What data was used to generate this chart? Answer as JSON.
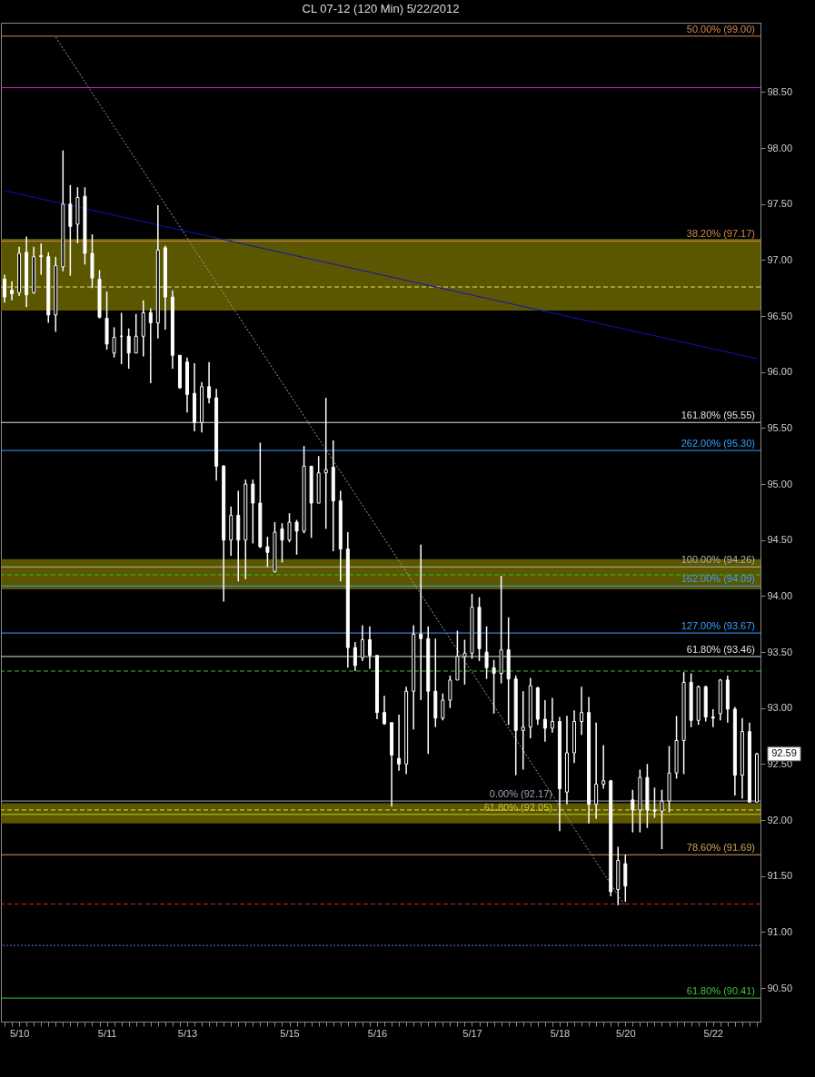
{
  "chart_data": {
    "type": "candlestick",
    "title": "CL 07-12 (120 Min)  5/22/2012",
    "color": "#ffffff",
    "categories": [
      null,
      null,
      "5/10",
      null,
      null,
      null,
      null,
      null,
      null,
      null,
      null,
      null,
      null,
      null,
      "5/11",
      null,
      null,
      null,
      null,
      null,
      null,
      null,
      null,
      null,
      null,
      "5/13",
      null,
      null,
      null,
      null,
      null,
      null,
      null,
      null,
      null,
      null,
      null,
      null,
      null,
      "5/15",
      null,
      null,
      null,
      null,
      null,
      null,
      null,
      null,
      null,
      null,
      null,
      "5/16",
      null,
      null,
      null,
      null,
      null,
      null,
      null,
      null,
      null,
      null,
      null,
      null,
      "5/17",
      null,
      null,
      null,
      null,
      null,
      null,
      null,
      null,
      null,
      null,
      null,
      "5/18",
      null,
      null,
      null,
      null,
      null,
      null,
      null,
      null,
      "5/20",
      null,
      null,
      null,
      null,
      null,
      null,
      null,
      null,
      null,
      null,
      null,
      "5/22",
      null,
      null,
      null,
      null,
      null,
      null
    ],
    "ohlc": [
      [
        96.83,
        96.87,
        96.62,
        96.67
      ],
      [
        96.73,
        96.81,
        96.64,
        96.7
      ],
      [
        96.71,
        97.12,
        96.68,
        97.06
      ],
      [
        97.07,
        97.21,
        96.58,
        96.69
      ],
      [
        96.71,
        97.12,
        96.7,
        97.03
      ],
      [
        97.04,
        97.15,
        96.87,
        97.03
      ],
      [
        97.03,
        97.07,
        96.44,
        96.51
      ],
      [
        96.51,
        97.03,
        96.36,
        96.95
      ],
      [
        96.94,
        97.98,
        96.9,
        97.5
      ],
      [
        97.5,
        97.67,
        96.86,
        97.3
      ],
      [
        97.32,
        97.65,
        97.15,
        97.56
      ],
      [
        97.57,
        97.65,
        96.96,
        97.06
      ],
      [
        97.06,
        97.23,
        96.75,
        96.84
      ],
      [
        96.83,
        96.91,
        96.48,
        96.49
      ],
      [
        96.48,
        96.72,
        96.2,
        96.25
      ],
      [
        96.17,
        96.4,
        96.13,
        96.31
      ],
      [
        96.32,
        96.53,
        96.07,
        96.32
      ],
      [
        96.32,
        96.39,
        96.03,
        96.17
      ],
      [
        96.17,
        96.52,
        96.17,
        96.32
      ],
      [
        96.32,
        96.64,
        96.14,
        96.53
      ],
      [
        96.53,
        96.57,
        95.9,
        96.44
      ],
      [
        96.44,
        97.49,
        96.3,
        97.09
      ],
      [
        97.11,
        97.13,
        96.38,
        96.67
      ],
      [
        96.67,
        96.73,
        96.03,
        96.15
      ],
      [
        96.15,
        96.15,
        95.85,
        95.86
      ],
      [
        96.09,
        96.13,
        95.64,
        95.8
      ],
      [
        95.81,
        96.08,
        95.47,
        95.55
      ],
      [
        95.55,
        95.91,
        95.46,
        95.87
      ],
      [
        95.87,
        96.09,
        95.72,
        95.77
      ],
      [
        95.77,
        95.85,
        95.03,
        95.16
      ],
      [
        95.16,
        95.17,
        93.95,
        94.5
      ],
      [
        94.5,
        94.8,
        94.36,
        94.72
      ],
      [
        94.72,
        94.94,
        94.13,
        94.5
      ],
      [
        94.5,
        95.04,
        94.15,
        95.0
      ],
      [
        95.0,
        95.04,
        94.47,
        94.83
      ],
      [
        94.83,
        95.37,
        94.43,
        94.44
      ],
      [
        94.44,
        94.53,
        94.26,
        94.39
      ],
      [
        94.22,
        94.66,
        94.21,
        94.57
      ],
      [
        94.6,
        94.65,
        94.3,
        94.5
      ],
      [
        94.5,
        94.74,
        94.48,
        94.66
      ],
      [
        94.66,
        94.68,
        94.37,
        94.58
      ],
      [
        94.58,
        95.34,
        94.56,
        95.16
      ],
      [
        95.16,
        95.16,
        94.52,
        94.83
      ],
      [
        94.83,
        95.25,
        94.83,
        95.1
      ],
      [
        95.1,
        95.77,
        94.6,
        95.13
      ],
      [
        95.15,
        95.39,
        94.4,
        94.85
      ],
      [
        94.85,
        94.94,
        94.13,
        94.42
      ],
      [
        94.42,
        94.57,
        93.36,
        93.54
      ],
      [
        93.54,
        93.59,
        93.33,
        93.38
      ],
      [
        93.45,
        93.74,
        93.42,
        93.61
      ],
      [
        93.61,
        93.73,
        93.35,
        93.47
      ],
      [
        93.47,
        93.47,
        92.9,
        92.96
      ],
      [
        92.96,
        93.11,
        92.85,
        92.86
      ],
      [
        92.87,
        92.87,
        92.12,
        92.58
      ],
      [
        92.55,
        92.94,
        92.44,
        92.5
      ],
      [
        92.5,
        93.19,
        92.41,
        93.15
      ],
      [
        93.15,
        93.74,
        92.81,
        93.66
      ],
      [
        93.66,
        94.46,
        93.07,
        93.62
      ],
      [
        93.62,
        93.73,
        92.59,
        93.15
      ],
      [
        93.15,
        93.62,
        92.83,
        92.91
      ],
      [
        92.91,
        93.13,
        92.89,
        93.07
      ],
      [
        93.07,
        93.29,
        93.0,
        93.25
      ],
      [
        93.25,
        93.69,
        93.25,
        93.46
      ],
      [
        93.46,
        93.61,
        93.21,
        93.49
      ],
      [
        93.49,
        94.02,
        93.44,
        93.9
      ],
      [
        93.9,
        93.99,
        93.42,
        93.53
      ],
      [
        93.5,
        93.73,
        93.26,
        93.36
      ],
      [
        93.36,
        93.43,
        92.95,
        93.31
      ],
      [
        93.31,
        94.18,
        93.22,
        93.52
      ],
      [
        93.52,
        93.81,
        92.85,
        93.26
      ],
      [
        93.26,
        93.29,
        92.4,
        92.8
      ],
      [
        92.8,
        93.15,
        92.45,
        92.83
      ],
      [
        92.83,
        93.27,
        92.73,
        93.2
      ],
      [
        93.18,
        93.19,
        92.85,
        92.9
      ],
      [
        92.9,
        93.07,
        92.7,
        92.82
      ],
      [
        92.82,
        93.09,
        92.78,
        92.88
      ],
      [
        92.88,
        92.92,
        91.9,
        92.28
      ],
      [
        92.25,
        92.93,
        92.14,
        92.6
      ],
      [
        92.6,
        92.98,
        92.51,
        92.88
      ],
      [
        92.88,
        93.19,
        92.76,
        92.96
      ],
      [
        92.96,
        93.1,
        91.97,
        92.14
      ],
      [
        92.14,
        92.87,
        92.01,
        92.32
      ],
      [
        92.32,
        92.67,
        92.28,
        92.35
      ],
      [
        92.35,
        92.36,
        91.32,
        91.36
      ],
      [
        91.38,
        91.76,
        91.24,
        91.64
      ],
      [
        91.61,
        91.69,
        91.27,
        91.41
      ],
      [
        92.18,
        92.27,
        91.89,
        92.09
      ],
      [
        92.09,
        92.45,
        91.89,
        92.38
      ],
      [
        92.38,
        92.5,
        91.93,
        92.09
      ],
      [
        92.09,
        92.29,
        92.02,
        92.08
      ],
      [
        92.08,
        92.27,
        91.74,
        92.17
      ],
      [
        92.17,
        92.66,
        92.07,
        92.42
      ],
      [
        92.42,
        92.93,
        92.37,
        92.71
      ],
      [
        92.71,
        93.32,
        92.41,
        93.23
      ],
      [
        93.23,
        93.31,
        92.83,
        92.89
      ],
      [
        92.89,
        93.2,
        92.85,
        93.19
      ],
      [
        93.19,
        93.2,
        92.88,
        92.92
      ],
      [
        92.92,
        92.99,
        92.83,
        92.91
      ],
      [
        92.95,
        93.26,
        92.89,
        93.25
      ],
      [
        93.25,
        93.29,
        92.87,
        92.99
      ],
      [
        92.99,
        93.01,
        92.22,
        92.4
      ],
      [
        92.4,
        92.91,
        92.19,
        92.79
      ],
      [
        92.79,
        92.87,
        92.16,
        92.16
      ],
      [
        92.16,
        92.6,
        92.16,
        92.59
      ]
    ],
    "series": [
      {
        "type": "line",
        "color": "#1010c0",
        "line_style": "solid",
        "values": [
          97.62,
          null,
          null,
          null,
          null,
          null,
          null,
          null,
          null,
          null,
          null,
          null,
          null,
          null,
          null,
          null,
          null,
          null,
          null,
          null,
          null,
          null,
          null,
          null,
          null,
          null,
          null,
          null,
          null,
          null,
          null,
          null,
          null,
          null,
          null,
          null,
          null,
          null,
          null,
          null,
          null,
          null,
          null,
          null,
          null,
          null,
          null,
          null,
          null,
          null,
          null,
          null,
          null,
          null,
          null,
          null,
          null,
          null,
          null,
          null,
          null,
          null,
          null,
          null,
          null,
          null,
          null,
          null,
          null,
          null,
          null,
          null,
          null,
          null,
          null,
          null,
          null,
          null,
          null,
          null,
          null,
          null,
          null,
          null,
          null,
          null,
          null,
          null,
          null,
          null,
          null,
          null,
          null,
          null,
          null,
          null,
          null,
          null,
          null,
          null,
          null,
          null,
          null,
          96.12
        ]
      },
      {
        "type": "line",
        "color": "#a0a0a0",
        "line_style": "dotted",
        "values": [
          null,
          null,
          null,
          null,
          null,
          null,
          null,
          98.99,
          null,
          null,
          null,
          null,
          null,
          null,
          null,
          null,
          null,
          null,
          null,
          null,
          null,
          null,
          null,
          null,
          null,
          null,
          null,
          null,
          null,
          null,
          null,
          null,
          null,
          null,
          null,
          null,
          null,
          null,
          null,
          null,
          null,
          null,
          null,
          null,
          null,
          null,
          null,
          null,
          null,
          null,
          null,
          null,
          null,
          null,
          null,
          null,
          null,
          null,
          null,
          null,
          null,
          null,
          null,
          null,
          null,
          null,
          null,
          null,
          null,
          null,
          null,
          null,
          null,
          null,
          null,
          null,
          null,
          null,
          null,
          null,
          null,
          null,
          null,
          null,
          null,
          91.23,
          null,
          null,
          null,
          null,
          null,
          null,
          null,
          null,
          null,
          null,
          null,
          null,
          null,
          null,
          null,
          null,
          null,
          null
        ]
      }
    ],
    "ylim": [
      90.2,
      99.12
    ],
    "yticks": [
      {
        "value": 90.5,
        "label": "90.50"
      },
      {
        "value": 91,
        "label": "91.00"
      },
      {
        "value": 91.5,
        "label": "91.50"
      },
      {
        "value": 92,
        "label": "92.00"
      },
      {
        "value": 92.5,
        "label": "92.50"
      },
      {
        "value": 93,
        "label": "93.00"
      },
      {
        "value": 93.5,
        "label": "93.50"
      },
      {
        "value": 94,
        "label": "94.00"
      },
      {
        "value": 94.5,
        "label": "94.50"
      },
      {
        "value": 95,
        "label": "95.00"
      },
      {
        "value": 95.5,
        "label": "95.50"
      },
      {
        "value": 96,
        "label": "96.00"
      },
      {
        "value": 96.5,
        "label": "96.50"
      },
      {
        "value": 97,
        "label": "97.00"
      },
      {
        "value": 97.5,
        "label": "97.50"
      },
      {
        "value": 98,
        "label": "98.00"
      },
      {
        "value": 98.5,
        "label": "98.50"
      }
    ],
    "bands": [
      {
        "axis": "y",
        "from": 96.55,
        "to": 97.19,
        "color": "#6b6500"
      },
      {
        "axis": "y",
        "from": 94.06,
        "to": 94.33,
        "color": "#6b6500"
      },
      {
        "axis": "y",
        "from": 91.97,
        "to": 92.15,
        "color": "#6b6500"
      }
    ],
    "ref_lines": [
      {
        "axis": "y",
        "value": 99.0,
        "label": "50.00% (99.00)",
        "color": "#d08850",
        "line_style": "solid"
      },
      {
        "axis": "y",
        "value": 98.54,
        "color": "#d020d0",
        "line_style": "solid"
      },
      {
        "axis": "y",
        "value": 97.17,
        "label": "38.20% (97.17)",
        "color": "#d08850",
        "line_style": "solid"
      },
      {
        "axis": "y",
        "value": 96.76,
        "color": "#e0e070",
        "line_style": "dashed"
      },
      {
        "axis": "y",
        "value": 95.55,
        "label": "161.80% (95.55)",
        "color": "#e0e0e0",
        "line_style": "solid"
      },
      {
        "axis": "y",
        "value": 95.3,
        "label": "262.00% (95.30)",
        "color": "#3aa0ff",
        "line_style": "solid"
      },
      {
        "axis": "y",
        "value": 94.26,
        "label": "100.00% (94.26)",
        "color": "#b0b0b0",
        "line_style": "solid"
      },
      {
        "axis": "y",
        "value": 94.19,
        "color": "#30c030",
        "line_style": "dashed"
      },
      {
        "axis": "y",
        "value": 94.09,
        "label": "162.00% (94.09)",
        "color": "#3aa0ff",
        "line_style": "solid"
      },
      {
        "axis": "y",
        "value": 93.67,
        "label": "127.00% (93.67)",
        "color": "#3aa0ff",
        "line_style": "solid"
      },
      {
        "axis": "y",
        "value": 93.46,
        "label": "61.80% (93.46)",
        "color": "#e0e0e0",
        "line_style": "solid"
      },
      {
        "axis": "y",
        "value": 93.33,
        "color": "#30c030",
        "line_style": "dashed"
      },
      {
        "axis": "y",
        "value": 92.17,
        "label": "0.00% (92.17)",
        "color": "#9aa2b4",
        "line_style": "solid"
      },
      {
        "axis": "y",
        "value": 92.09,
        "color": "#e0e040",
        "line_style": "dashed"
      },
      {
        "axis": "y",
        "value": 92.05,
        "label": "61.80% (92.05)",
        "color": "#c8c830",
        "line_style": "solid"
      },
      {
        "axis": "y",
        "value": 91.69,
        "label": "78.60% (91.69)",
        "color": "#d0a060",
        "line_style": "solid"
      },
      {
        "axis": "y",
        "value": 91.25,
        "color": "#e02020",
        "line_style": "dashed"
      },
      {
        "axis": "y",
        "value": 90.88,
        "color": "#5080e0",
        "line_style": "dotted"
      },
      {
        "axis": "y",
        "value": 90.41,
        "label": "61.80% (90.41)",
        "color": "#40c040",
        "line_style": "solid"
      }
    ],
    "annotations": [
      "92.59"
    ],
    "grid": false
  }
}
